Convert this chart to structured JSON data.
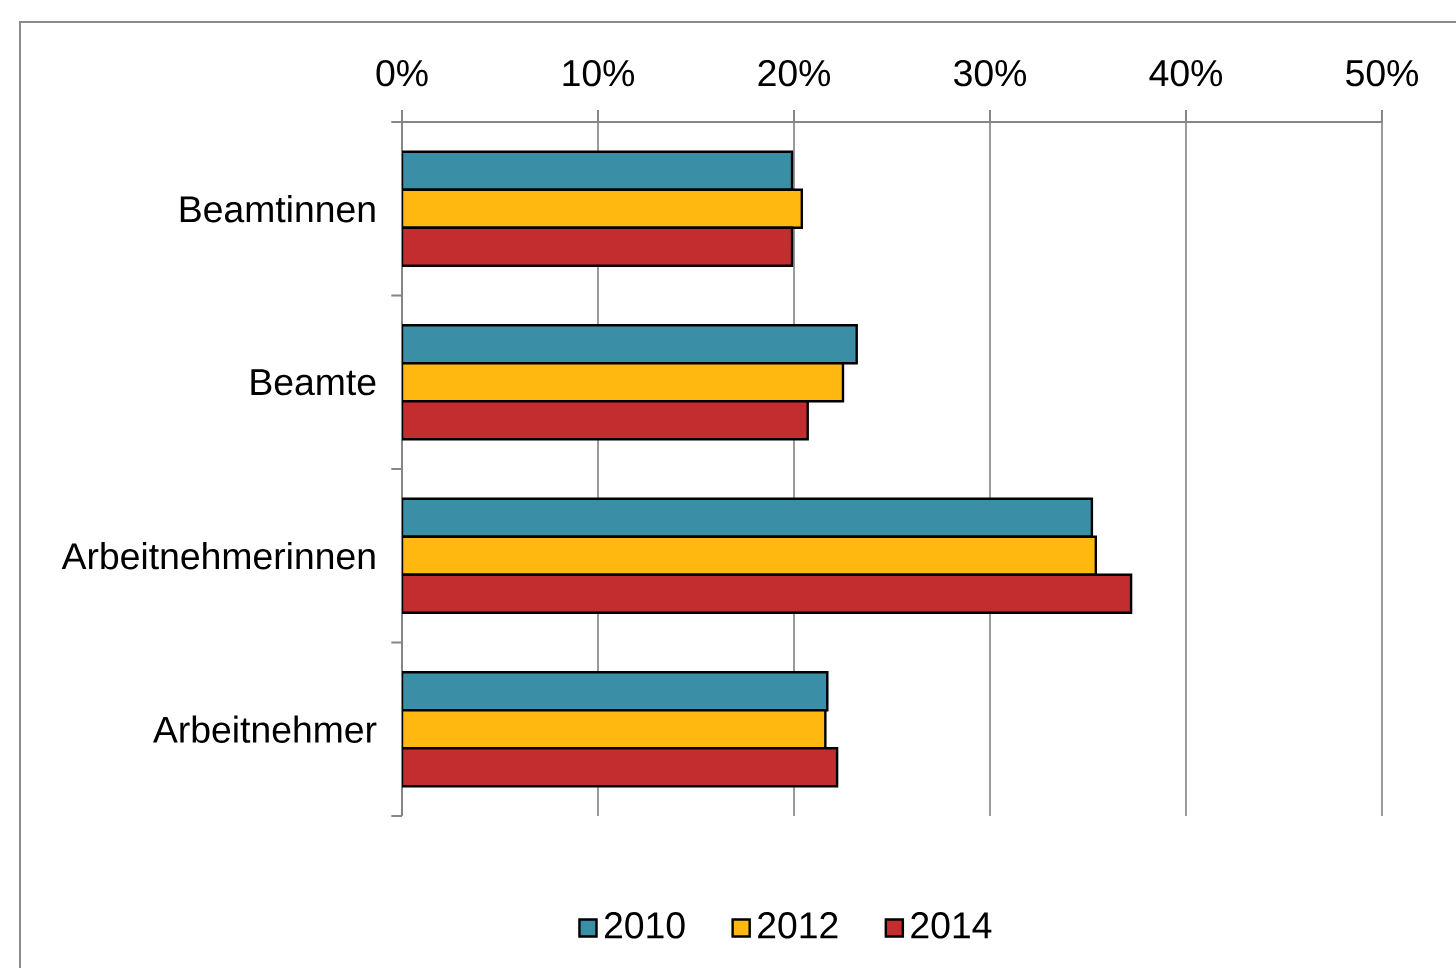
{
  "chart_data": {
    "type": "bar",
    "orientation": "horizontal",
    "categories": [
      "Beamtinnen",
      "Beamte",
      "Arbeitnehmerinnen",
      "Arbeitnehmer"
    ],
    "series": [
      {
        "name": "2010",
        "color": "#3a8fa7",
        "values": [
          19.9,
          23.2,
          35.2,
          21.7
        ]
      },
      {
        "name": "2012",
        "color": "#ffb80f",
        "values": [
          20.4,
          22.5,
          35.4,
          21.6
        ]
      },
      {
        "name": "2014",
        "color": "#c32d2f",
        "values": [
          19.9,
          20.7,
          37.2,
          22.2
        ]
      }
    ],
    "xlim": [
      0,
      50
    ],
    "xticks": [
      {
        "value": 0,
        "label": "0%"
      },
      {
        "value": 10,
        "label": "10%"
      },
      {
        "value": 20,
        "label": "20%"
      },
      {
        "value": 30,
        "label": "30%"
      },
      {
        "value": 40,
        "label": "40%"
      },
      {
        "value": 50,
        "label": "50%"
      }
    ],
    "grid": "x",
    "legend": "bottom"
  }
}
